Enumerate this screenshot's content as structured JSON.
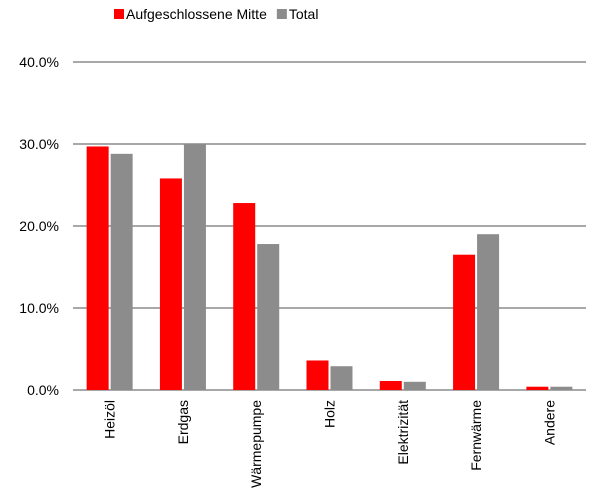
{
  "chart_data": {
    "type": "bar",
    "title": "",
    "xlabel": "",
    "ylabel": "",
    "ylim": [
      0,
      0.4
    ],
    "y_ticks": [
      0,
      0.1,
      0.2,
      0.3,
      0.4
    ],
    "y_tick_labels": [
      "0.0%",
      "10.0%",
      "20.0%",
      "30.0%",
      "40.0%"
    ],
    "grid": "horizontal",
    "legend": "top-left",
    "categories": [
      "Heizöl",
      "Erdgas",
      "Wärmepumpe",
      "Holz",
      "Elektrizität",
      "Fernwärme",
      "Andere"
    ],
    "series": [
      {
        "name": "Aufgeschlossene Mitte",
        "color": "#ff0000",
        "values": [
          0.297,
          0.258,
          0.228,
          0.036,
          0.011,
          0.165,
          0.004
        ]
      },
      {
        "name": "Total",
        "color": "#8c8c8c",
        "values": [
          0.288,
          0.3,
          0.178,
          0.029,
          0.01,
          0.19,
          0.004
        ]
      }
    ]
  }
}
